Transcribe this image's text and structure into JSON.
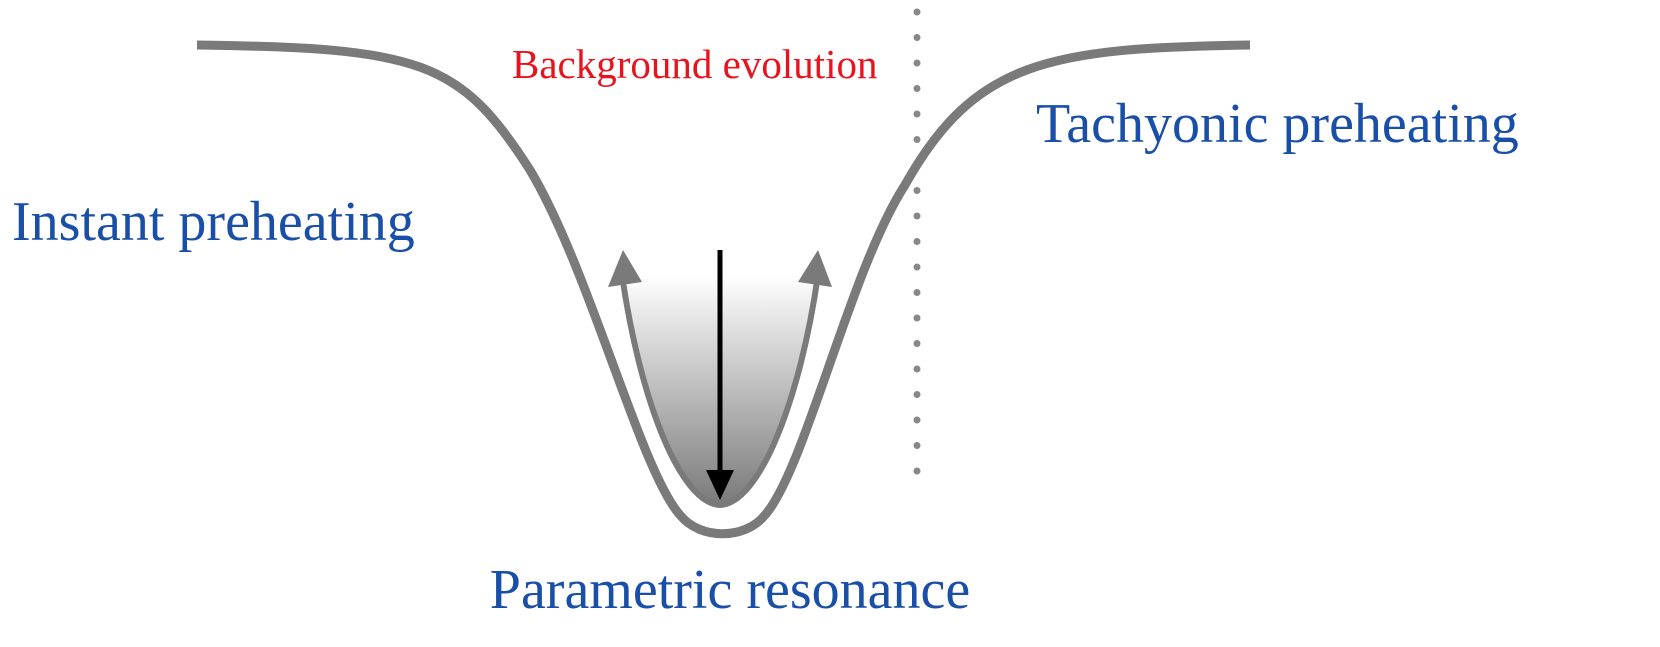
{
  "labels": {
    "background": "Background evolution",
    "tachyonic": "Tachyonic preheating",
    "instant": "Instant preheating",
    "parametric": "Parametric resonance"
  }
}
